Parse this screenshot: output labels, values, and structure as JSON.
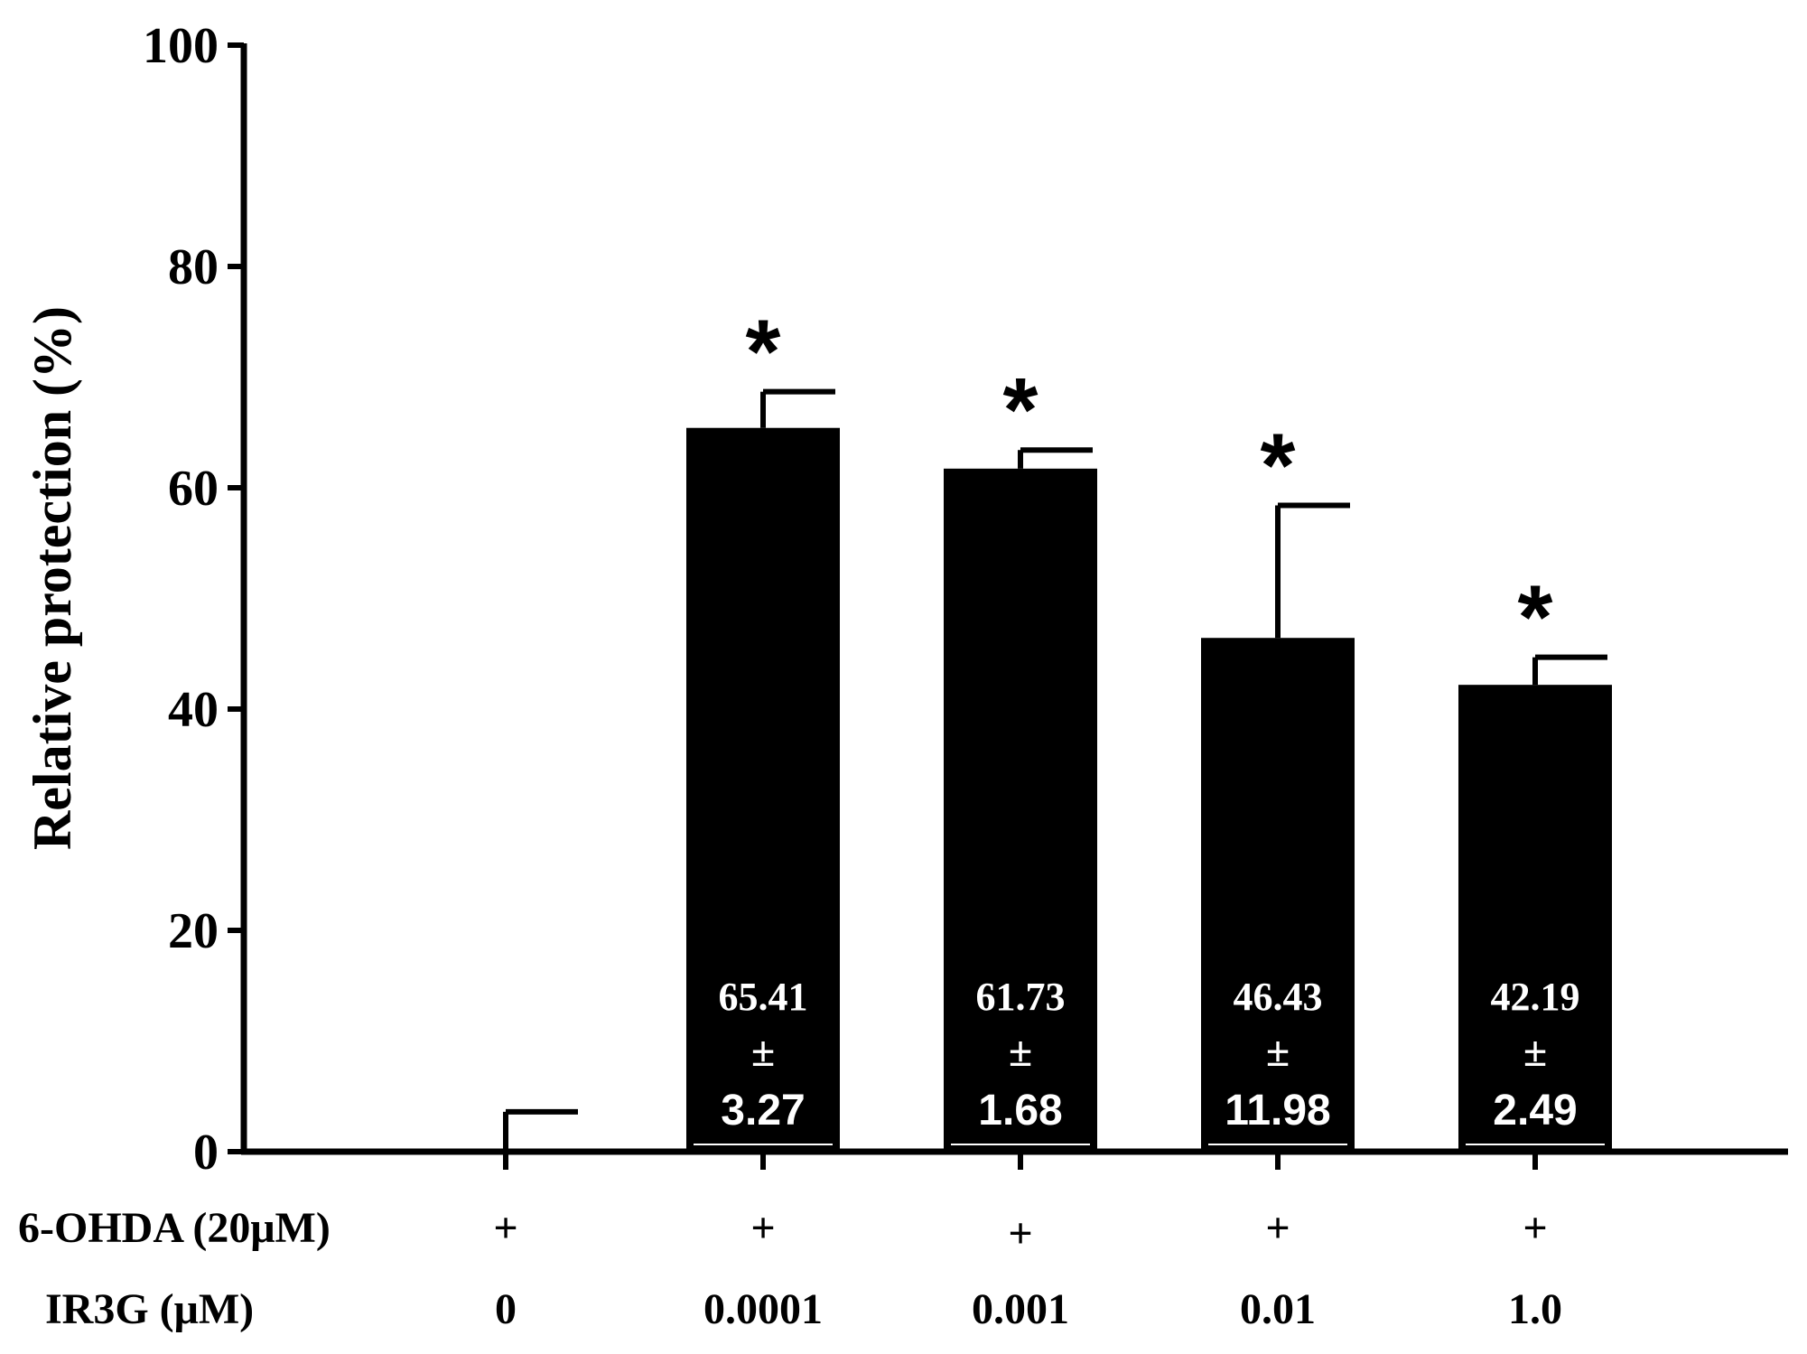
{
  "chart_data": {
    "type": "bar",
    "title": "",
    "ylabel": "Relative protection (%)",
    "xlabel": "",
    "ylim": [
      0,
      100
    ],
    "yticks": [
      0,
      20,
      40,
      60,
      80,
      100
    ],
    "ytick_labels": [
      "0",
      "20",
      "40",
      "60",
      "80",
      "100"
    ],
    "categories": [
      "0",
      "0.0001",
      "0.001",
      "0.01",
      "1.0"
    ],
    "values": [
      0,
      65.41,
      61.73,
      46.43,
      42.19
    ],
    "errors": [
      3.6,
      3.27,
      1.68,
      11.98,
      2.49
    ],
    "significant": [
      false,
      true,
      true,
      true,
      true
    ],
    "significance_marker": "*",
    "pm_symbol": "±",
    "value_labels": [
      null,
      {
        "mean": "65.41",
        "sd": "3.27"
      },
      {
        "mean": "61.73",
        "sd": "1.68"
      },
      {
        "mean": "46.43",
        "sd": "11.98"
      },
      {
        "mean": "42.19",
        "sd": "2.49"
      }
    ],
    "rows": [
      {
        "label": "6-OHDA (20μM)",
        "values": [
          "+",
          "+",
          "+",
          "+",
          "+"
        ]
      },
      {
        "label": "IR3G (μM)",
        "values": [
          "0",
          "0.0001",
          "0.001",
          "0.01",
          "1.0"
        ]
      }
    ],
    "bar_color": "#000000"
  }
}
